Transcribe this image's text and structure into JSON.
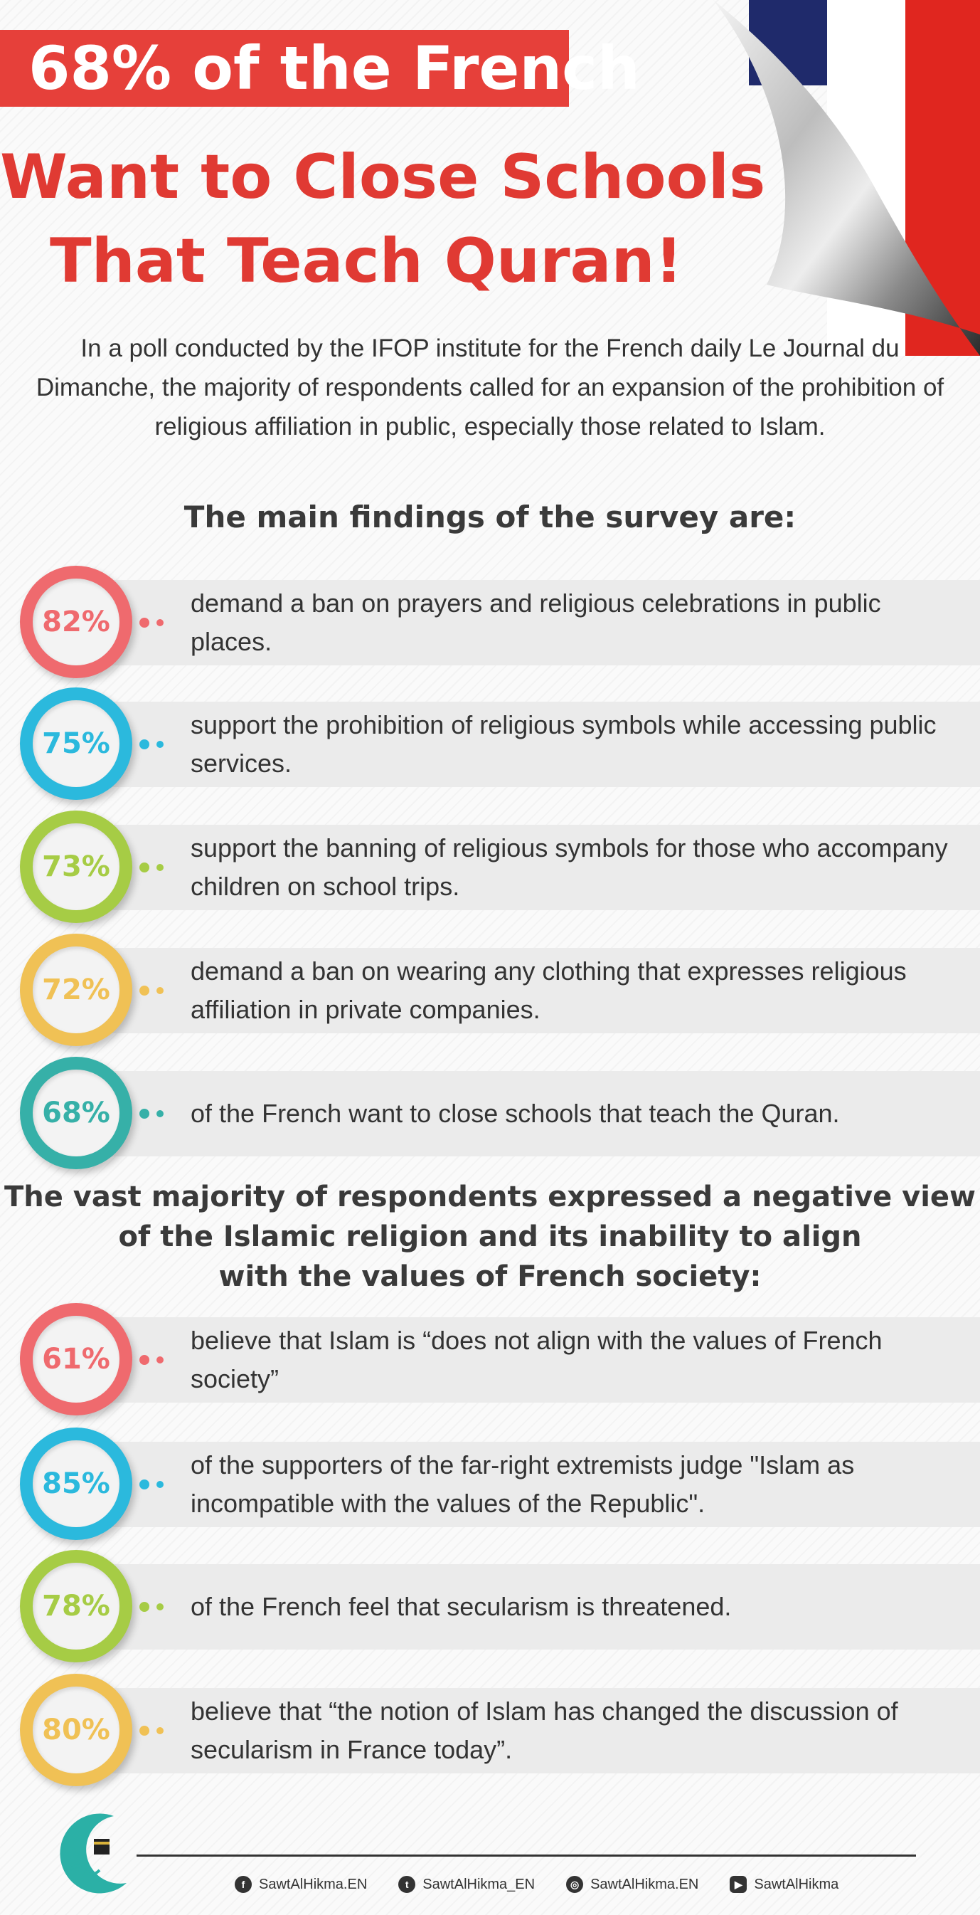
{
  "header": {
    "banner": "68% of the French",
    "headline_line1": "Want to Close Schools",
    "headline_line2": "That Teach Quran!"
  },
  "intro": "In a poll conducted by the IFOP institute for the French daily Le Journal du Dimanche, the majority of respondents called for an expansion of the prohibition of religious affiliation in public, especially those related to Islam.",
  "main_findings": {
    "heading": "The main findings of the survey are:",
    "items": [
      {
        "percent": "82%",
        "text": "demand a ban on prayers and religious celebrations in public places."
      },
      {
        "percent": "75%",
        "text": "support the prohibition of religious symbols while accessing public services."
      },
      {
        "percent": "73%",
        "text": "support the banning of religious symbols for those who accompany children on school trips."
      },
      {
        "percent": "72%",
        "text": "demand a ban on wearing any clothing that expresses religious affiliation in private companies."
      },
      {
        "percent": "68%",
        "text": "of the French want to close schools that teach the Quran."
      }
    ]
  },
  "negative_view": {
    "heading_line1": "The vast majority of respondents expressed a negative view",
    "heading_line2": "of the Islamic religion and its inability to align",
    "heading_line3": "with the values of French society:",
    "items": [
      {
        "percent": "61%",
        "text": "believe that Islam is “does not align with the values of French society”"
      },
      {
        "percent": "85%",
        "text": "of the supporters of the far-right extremists judge \"Islam as incompatible with the values of the Republic\"."
      },
      {
        "percent": "78%",
        "text": "of the French feel that secularism is threatened."
      },
      {
        "percent": "80%",
        "text": "believe that “the notion of Islam has changed the discussion of secularism in France today”."
      }
    ]
  },
  "footer": {
    "socials": [
      {
        "icon": "facebook-icon",
        "handle": "SawtAlHikma.EN"
      },
      {
        "icon": "twitter-icon",
        "handle": "SawtAlHikma_EN"
      },
      {
        "icon": "instagram-icon",
        "handle": "SawtAlHikma.EN"
      },
      {
        "icon": "youtube-icon",
        "handle": "SawtAlHikma"
      }
    ]
  },
  "colors": {
    "red": "#ef6a6e",
    "blue": "#2bb9dd",
    "green": "#a6cc45",
    "yellow": "#f0c155",
    "teal": "#36b0a8",
    "banner": "#e6403a",
    "headline": "#e03a33"
  }
}
